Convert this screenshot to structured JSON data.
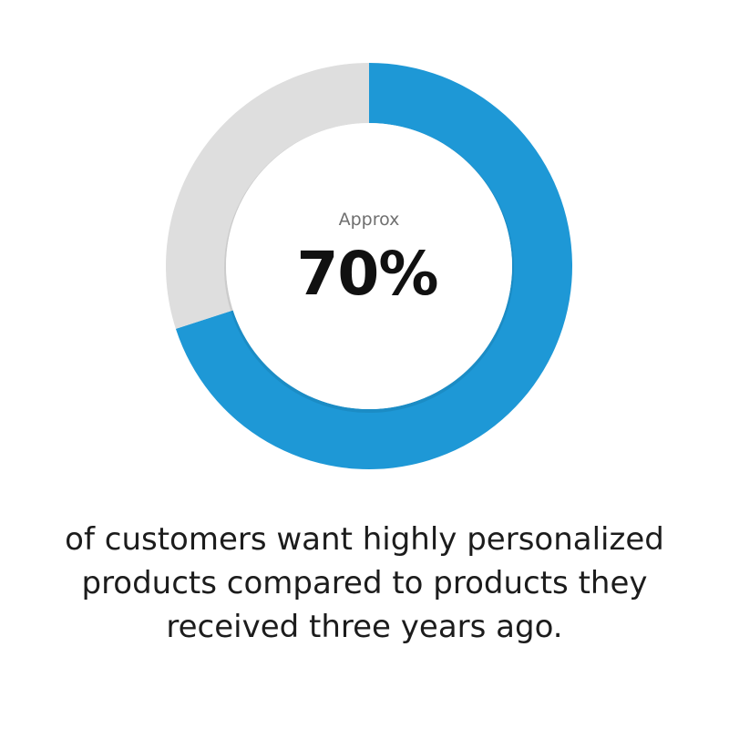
{
  "chart_data": {
    "type": "pie",
    "style": "donut",
    "slices": [
      {
        "value": 70,
        "color": "#1e98d6"
      },
      {
        "value": 30,
        "color": "#dedede"
      }
    ],
    "center_label": "Approx",
    "center_value": "70%"
  },
  "caption": "of customers want highly personalized products compared to products they received three years ago."
}
